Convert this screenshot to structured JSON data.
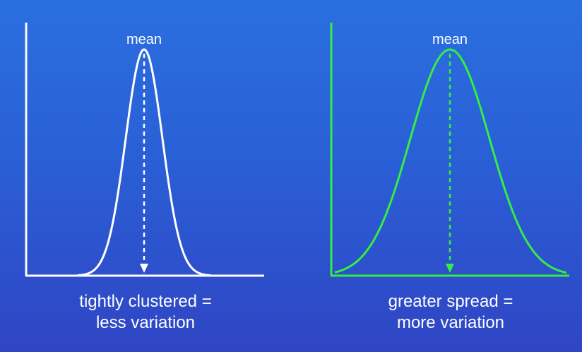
{
  "left": {
    "mean_label": "mean",
    "caption_line1": "tightly clustered =",
    "caption_line2": "less variation",
    "color": "#ffffff"
  },
  "right": {
    "mean_label": "mean",
    "caption_line1": "greater spread =",
    "caption_line2": "more variation",
    "color": "#33ee44"
  },
  "background": {
    "top_color": "#2a6fe0",
    "bottom_color": "#2f45c4"
  }
}
